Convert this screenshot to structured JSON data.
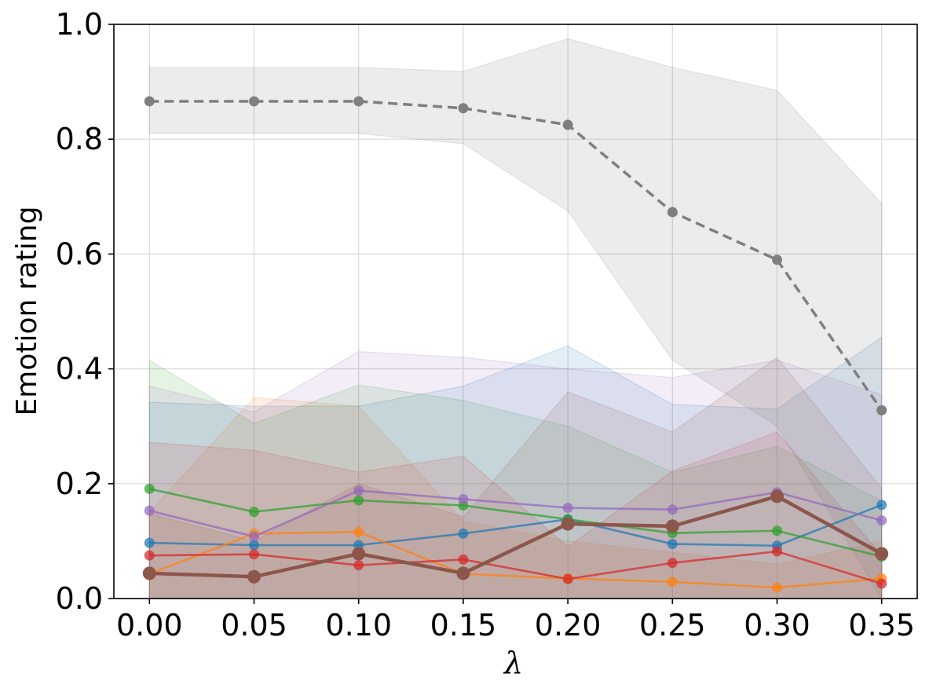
{
  "chart_data": {
    "type": "line",
    "title": "",
    "xlabel": "λ",
    "ylabel": "Emotion rating",
    "x": [
      0.0,
      0.05,
      0.1,
      0.15,
      0.2,
      0.25,
      0.3,
      0.35
    ],
    "x_tick_labels": [
      "0.00",
      "0.05",
      "0.10",
      "0.15",
      "0.20",
      "0.25",
      "0.30",
      "0.35"
    ],
    "y_ticks": [
      0.0,
      0.2,
      0.4,
      0.6,
      0.8,
      1.0
    ],
    "y_tick_labels": [
      "0.0",
      "0.2",
      "0.4",
      "0.6",
      "0.8",
      "1.0"
    ],
    "xlim": [
      -0.017,
      0.367
    ],
    "ylim": [
      0.0,
      1.0
    ],
    "grid": true,
    "legend": "none",
    "series": [
      {
        "name": "blue",
        "color": "#1f77b4",
        "style": "solid",
        "values": [
          0.097,
          0.093,
          0.093,
          0.113,
          0.138,
          0.095,
          0.092,
          0.163
        ],
        "lower": [
          0.0,
          0.0,
          0.0,
          0.0,
          0.0,
          0.0,
          0.0,
          0.0
        ],
        "upper": [
          0.342,
          0.335,
          0.335,
          0.37,
          0.44,
          0.338,
          0.33,
          0.455
        ]
      },
      {
        "name": "orange",
        "color": "#ff7f0e",
        "style": "solid",
        "values": [
          0.043,
          0.113,
          0.116,
          0.043,
          0.035,
          0.029,
          0.019,
          0.035
        ],
        "lower": [
          0.0,
          0.0,
          0.0,
          0.0,
          0.0,
          0.0,
          0.0,
          0.0
        ],
        "upper": [
          0.15,
          0.35,
          0.335,
          0.135,
          0.1,
          0.08,
          0.06,
          0.1
        ]
      },
      {
        "name": "green",
        "color": "#2ca02c",
        "style": "solid",
        "values": [
          0.191,
          0.151,
          0.171,
          0.162,
          0.138,
          0.114,
          0.118,
          0.073
        ],
        "lower": [
          0.0,
          0.0,
          0.0,
          0.0,
          0.0,
          0.0,
          0.0,
          0.0
        ],
        "upper": [
          0.415,
          0.305,
          0.372,
          0.345,
          0.3,
          0.22,
          0.265,
          0.17
        ]
      },
      {
        "name": "red",
        "color": "#d62728",
        "style": "solid",
        "values": [
          0.075,
          0.077,
          0.058,
          0.068,
          0.034,
          0.062,
          0.082,
          0.026
        ],
        "lower": [
          0.0,
          0.0,
          0.0,
          0.0,
          0.0,
          0.0,
          0.0,
          0.0
        ],
        "upper": [
          0.272,
          0.258,
          0.22,
          0.248,
          0.09,
          0.222,
          0.29,
          0.075
        ]
      },
      {
        "name": "purple",
        "color": "#9467bd",
        "style": "solid",
        "values": [
          0.153,
          0.108,
          0.188,
          0.173,
          0.158,
          0.155,
          0.185,
          0.136
        ],
        "lower": [
          0.0,
          0.0,
          0.0,
          0.0,
          0.0,
          0.0,
          0.0,
          0.0
        ],
        "upper": [
          0.37,
          0.325,
          0.43,
          0.42,
          0.4,
          0.385,
          0.415,
          0.355
        ]
      },
      {
        "name": "brown",
        "color": "#8c564b",
        "style": "solid",
        "bold": true,
        "values": [
          0.044,
          0.038,
          0.078,
          0.044,
          0.13,
          0.126,
          0.178,
          0.078
        ],
        "lower": [
          0.0,
          0.0,
          0.0,
          0.0,
          0.0,
          0.0,
          0.0,
          0.0
        ],
        "upper": [
          0.148,
          0.1,
          0.2,
          0.142,
          0.36,
          0.29,
          0.42,
          0.192
        ]
      },
      {
        "name": "gray",
        "color": "#7f7f7f",
        "style": "dashed",
        "values": [
          0.866,
          0.866,
          0.866,
          0.854,
          0.825,
          0.673,
          0.59,
          0.328
        ],
        "lower": [
          0.81,
          0.81,
          0.81,
          0.792,
          0.675,
          0.415,
          0.3,
          0.0
        ],
        "upper": [
          0.925,
          0.925,
          0.925,
          0.918,
          0.975,
          0.925,
          0.885,
          0.688
        ]
      }
    ]
  }
}
